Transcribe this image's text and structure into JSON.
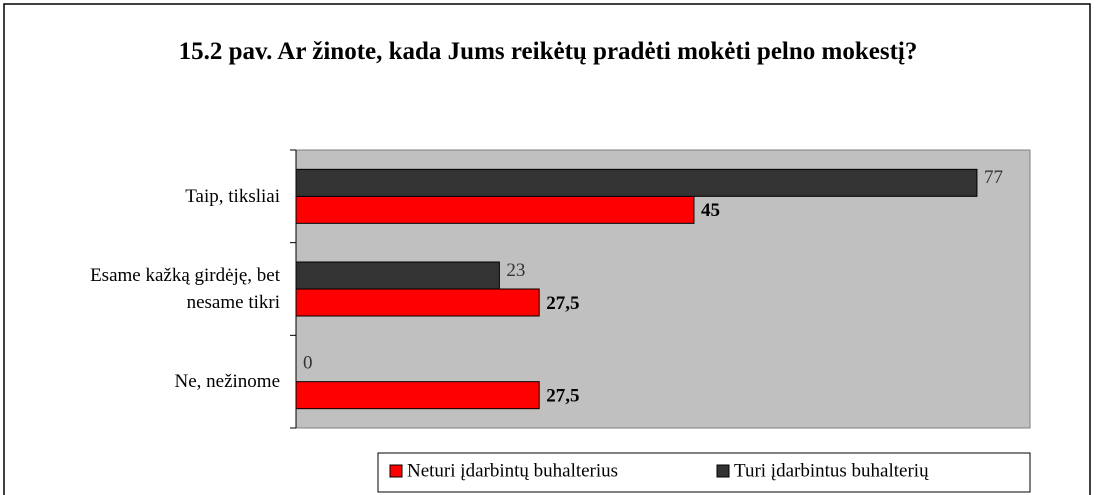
{
  "chart_data": {
    "type": "barh",
    "title": "15.2 pav. Ar žinote, kada Jums reikėtų pradėti mokėti pelno mokestį?",
    "categories": [
      "Taip, tiksliai",
      "Esame kažką girdėję, bet nesame tikri",
      "Ne, nežinome"
    ],
    "series": [
      {
        "name": "Neturi įdarbintų buhalterius",
        "color": "#ff0000",
        "values": [
          45,
          27.5,
          27.5
        ],
        "value_labels": [
          "45",
          "27,5",
          "27,5"
        ]
      },
      {
        "name": "Turi įdarbintus buhalterių",
        "color": "#333333",
        "values": [
          77,
          23,
          0
        ]
      }
    ],
    "xlim": [
      0,
      83
    ],
    "legend": "bottom"
  }
}
